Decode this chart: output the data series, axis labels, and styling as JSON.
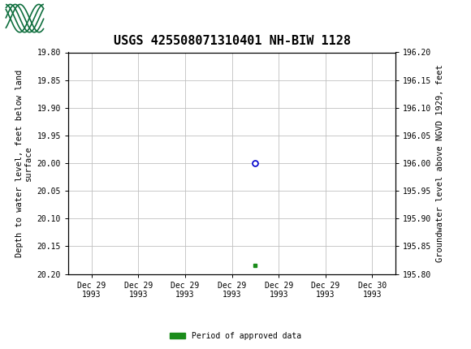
{
  "title": "USGS 425508071310401 NH-BIW 1128",
  "ylabel_left": "Depth to water level, feet below land\nsurface",
  "ylabel_right": "Groundwater level above NGVD 1929, feet",
  "ylim_left": [
    20.2,
    19.8
  ],
  "ylim_right": [
    195.8,
    196.2
  ],
  "yticks_left": [
    19.8,
    19.85,
    19.9,
    19.95,
    20.0,
    20.05,
    20.1,
    20.15,
    20.2
  ],
  "yticks_right": [
    196.2,
    196.15,
    196.1,
    196.05,
    196.0,
    195.95,
    195.9,
    195.85,
    195.8
  ],
  "data_point_x": 3.5,
  "data_point_y": 20.0,
  "green_square_x": 3.5,
  "green_square_y": 20.185,
  "x_tick_labels": [
    "Dec 29\n1993",
    "Dec 29\n1993",
    "Dec 29\n1993",
    "Dec 29\n1993",
    "Dec 29\n1993",
    "Dec 29\n1993",
    "Dec 30\n1993"
  ],
  "x_tick_positions": [
    0,
    1,
    2,
    3,
    4,
    5,
    6
  ],
  "xlim": [
    -0.5,
    6.5
  ],
  "header_color": "#0e6e3d",
  "plot_bg": "#ffffff",
  "grid_color": "#c0c0c0",
  "open_circle_color": "#0000cc",
  "green_square_color": "#1a8c1a",
  "legend_label": "Period of approved data",
  "title_fontsize": 11,
  "axis_label_fontsize": 7.5,
  "tick_fontsize": 7
}
